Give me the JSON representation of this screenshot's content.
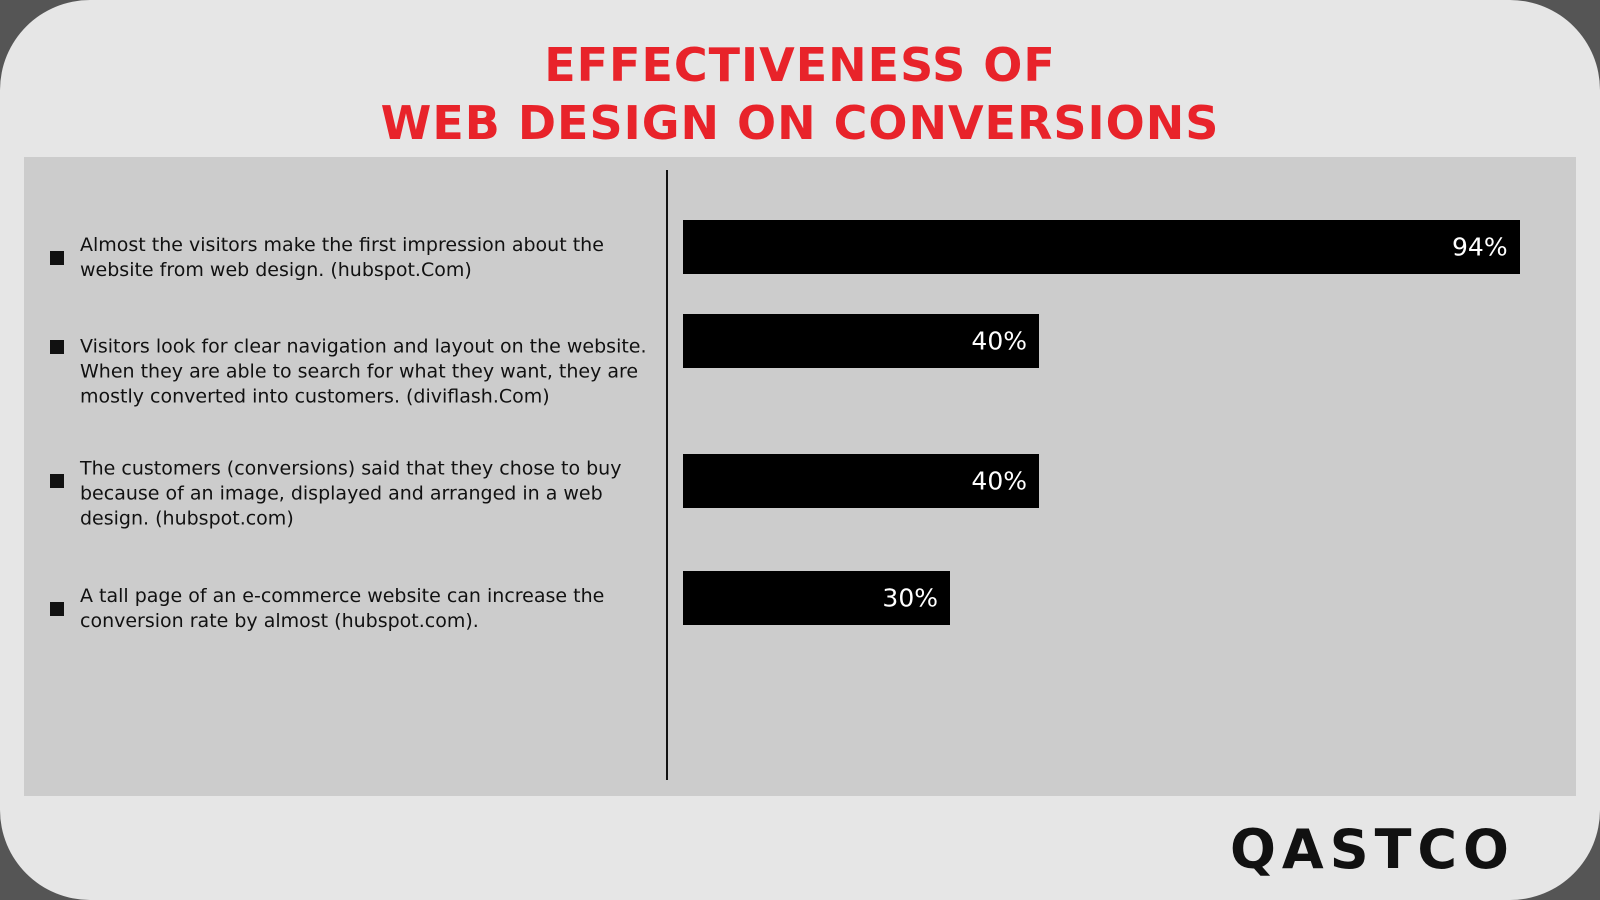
{
  "chart_data": {
    "type": "bar",
    "title_lines": [
      "EFFECTIVENESS OF",
      "WEB DESIGN  ON CONVERSIONS"
    ],
    "categories": [
      "Almost the visitors make the first impression about the website from web design. (hubspot.Com)",
      "Visitors look for clear navigation and layout on the website. When they are able to search for what they want, they are mostly converted into customers. (diviflash.Com)",
      "The customers (conversions) said that they chose to buy because of an image, displayed and arranged in a web design. (hubspot.com)",
      "A tall page of an e-commerce website can increase the conversion rate by almost (hubspot.com)."
    ],
    "values": [
      94,
      40,
      40,
      30
    ],
    "value_labels": [
      "94%",
      "40%",
      "40%",
      "30%"
    ],
    "xlim": [
      0,
      100
    ],
    "color": "#000000",
    "logo": "QASTCO"
  }
}
